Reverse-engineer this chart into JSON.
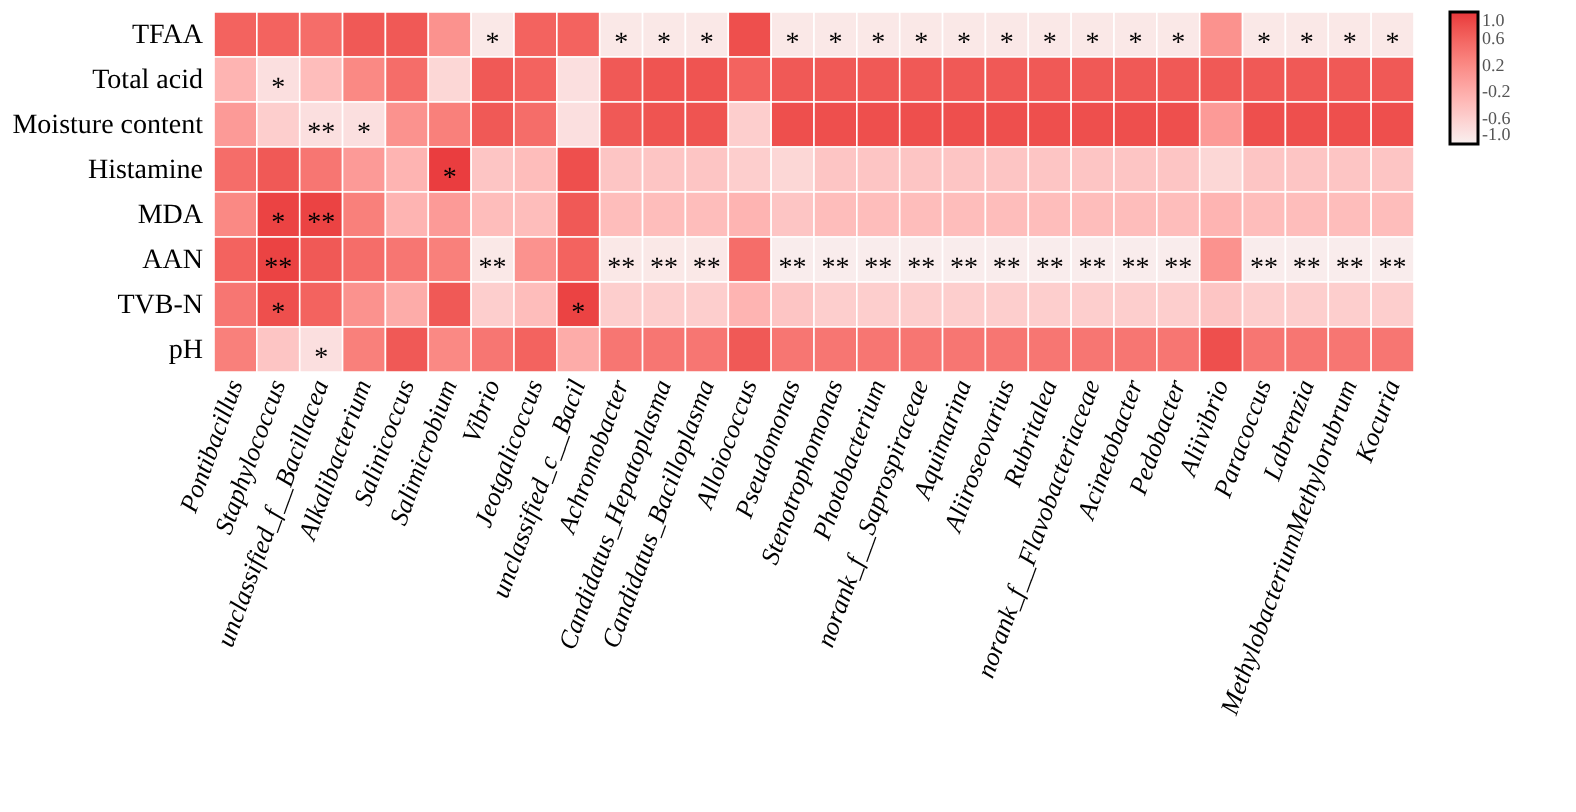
{
  "chart_data": {
    "type": "heatmap",
    "categories": [
      "Pontibacillus",
      "Staphylococcus",
      "unclassified_f__Bacillacea",
      "Alkalibacterium",
      "Salinicoccus",
      "Salimicrobium",
      "Vibrio",
      "Jeotgalicoccus",
      "unclassified_c__Bacil",
      "Achromobacter",
      "Candidatus_Hepatoplasma",
      "Candidatus_Bacilloplasma",
      "Alloiococcus",
      "Pseudomonas",
      "Stenotrophomonas",
      "Photobacterium",
      "norank_f__Saprospiraceae",
      "Aquimarina",
      "Aliiroseovarius",
      "Rubritalea",
      "norank_f__Flavobacteriaceae",
      "Acinetobacter",
      "Pedobacter",
      "Aliivibrio",
      "Paracoccus",
      "Labrenzia",
      "MethylobacteriumMethylorubrum",
      "Kocuria"
    ],
    "y_categories": [
      "TFAA",
      "Total acid",
      "Moisture content",
      "Histamine",
      "MDA",
      "AAN",
      "TVB-N",
      "pH"
    ],
    "cells": [
      [
        0.6,
        0.6,
        0.5,
        0.7,
        0.7,
        0.1,
        -0.9,
        0.6,
        0.6,
        -0.9,
        -0.9,
        -0.9,
        0.8,
        -0.9,
        -0.9,
        -0.9,
        -0.9,
        -0.9,
        -0.9,
        -0.9,
        -0.9,
        -0.9,
        -0.9,
        0.1,
        -0.9,
        -0.9,
        -0.9,
        -0.9
      ],
      [
        -0.3,
        -0.8,
        -0.4,
        0.2,
        0.5,
        -0.7,
        0.7,
        0.6,
        -0.8,
        0.7,
        0.75,
        0.75,
        0.6,
        0.7,
        0.7,
        0.7,
        0.7,
        0.7,
        0.7,
        0.7,
        0.7,
        0.7,
        0.7,
        0.7,
        0.7,
        0.7,
        0.7,
        0.7
      ],
      [
        0.0,
        -0.6,
        -0.8,
        -0.8,
        0.1,
        0.3,
        0.7,
        0.5,
        -0.8,
        0.7,
        0.75,
        0.75,
        -0.6,
        0.8,
        0.8,
        0.8,
        0.8,
        0.8,
        0.8,
        0.8,
        0.8,
        0.8,
        0.8,
        0.0,
        0.8,
        0.8,
        0.8,
        0.8
      ],
      [
        0.5,
        0.7,
        0.4,
        0.0,
        -0.3,
        0.95,
        -0.5,
        -0.4,
        0.8,
        -0.5,
        -0.5,
        -0.5,
        -0.6,
        -0.7,
        -0.5,
        -0.5,
        -0.5,
        -0.5,
        -0.5,
        -0.5,
        -0.5,
        -0.5,
        -0.5,
        -0.7,
        -0.5,
        -0.5,
        -0.5,
        -0.5
      ],
      [
        0.2,
        0.9,
        0.9,
        0.3,
        -0.3,
        0.0,
        -0.4,
        -0.4,
        0.7,
        -0.4,
        -0.4,
        -0.4,
        -0.3,
        -0.5,
        -0.4,
        -0.4,
        -0.4,
        -0.4,
        -0.4,
        -0.4,
        -0.4,
        -0.4,
        -0.4,
        -0.3,
        -0.4,
        -0.4,
        -0.4,
        -0.4
      ],
      [
        0.6,
        0.9,
        0.7,
        0.5,
        0.4,
        0.3,
        -0.9,
        0.1,
        0.6,
        -0.9,
        -0.9,
        -0.9,
        0.5,
        -0.95,
        -0.95,
        -0.95,
        -0.95,
        -0.95,
        -0.95,
        -0.95,
        -0.95,
        -0.95,
        -0.95,
        0.1,
        -0.95,
        -0.95,
        -0.95,
        -0.95
      ],
      [
        0.4,
        0.8,
        0.6,
        0.1,
        -0.2,
        0.7,
        -0.6,
        -0.4,
        0.9,
        -0.6,
        -0.6,
        -0.6,
        -0.3,
        -0.5,
        -0.6,
        -0.6,
        -0.6,
        -0.6,
        -0.6,
        -0.6,
        -0.6,
        -0.6,
        -0.6,
        -0.5,
        -0.6,
        -0.6,
        -0.6,
        -0.6
      ],
      [
        0.3,
        -0.5,
        -0.8,
        0.3,
        0.7,
        0.2,
        0.4,
        0.6,
        -0.2,
        0.4,
        0.4,
        0.4,
        0.7,
        0.4,
        0.4,
        0.4,
        0.4,
        0.4,
        0.4,
        0.4,
        0.4,
        0.4,
        0.4,
        0.8,
        0.4,
        0.4,
        0.4,
        0.4
      ]
    ],
    "cell_labels": [
      [
        null,
        null,
        null,
        null,
        null,
        null,
        "*",
        null,
        null,
        "*",
        "*",
        "*",
        null,
        "*",
        "*",
        "*",
        "*",
        "*",
        "*",
        "*",
        "*",
        "*",
        "*",
        null,
        "*",
        "*",
        "*",
        "*"
      ],
      [
        null,
        "*",
        null,
        null,
        null,
        null,
        null,
        null,
        null,
        null,
        null,
        null,
        null,
        null,
        null,
        null,
        null,
        null,
        null,
        null,
        null,
        null,
        null,
        null,
        null,
        null,
        null,
        null
      ],
      [
        null,
        null,
        "**",
        "*",
        null,
        null,
        null,
        null,
        null,
        null,
        null,
        null,
        null,
        null,
        null,
        null,
        null,
        null,
        null,
        null,
        null,
        null,
        null,
        null,
        null,
        null,
        null,
        null
      ],
      [
        null,
        null,
        null,
        null,
        null,
        "*",
        null,
        null,
        null,
        null,
        null,
        null,
        null,
        null,
        null,
        null,
        null,
        null,
        null,
        null,
        null,
        null,
        null,
        null,
        null,
        null,
        null,
        null
      ],
      [
        null,
        "*",
        "**",
        null,
        null,
        null,
        null,
        null,
        null,
        null,
        null,
        null,
        null,
        null,
        null,
        null,
        null,
        null,
        null,
        null,
        null,
        null,
        null,
        null,
        null,
        null,
        null,
        null
      ],
      [
        null,
        "**",
        null,
        null,
        null,
        null,
        "**",
        null,
        null,
        "**",
        "**",
        "**",
        null,
        "**",
        "**",
        "**",
        "**",
        "**",
        "**",
        "**",
        "**",
        "**",
        "**",
        null,
        "**",
        "**",
        "**",
        "**"
      ],
      [
        null,
        "*",
        null,
        null,
        null,
        null,
        null,
        null,
        "*",
        null,
        null,
        null,
        null,
        null,
        null,
        null,
        null,
        null,
        null,
        null,
        null,
        null,
        null,
        null,
        null,
        null,
        null,
        null
      ],
      [
        null,
        null,
        "*",
        null,
        null,
        null,
        null,
        null,
        null,
        null,
        null,
        null,
        null,
        null,
        null,
        null,
        null,
        null,
        null,
        null,
        null,
        null,
        null,
        null,
        null,
        null,
        null,
        null
      ]
    ],
    "clim": [
      -1.0,
      1.0
    ],
    "cticks": [
      {
        "value": 1.0,
        "label": "1.0"
      },
      {
        "value": 0.6,
        "label": "0.6"
      },
      {
        "value": 0.2,
        "label": "0.2"
      },
      {
        "value": -0.2,
        "label": "-0.2"
      },
      {
        "value": -0.6,
        "label": "-0.6"
      },
      {
        "value": -1.0,
        "label": "-1.0"
      }
    ],
    "colors": [
      "#f8f0f0",
      "#e8363a"
    ]
  }
}
